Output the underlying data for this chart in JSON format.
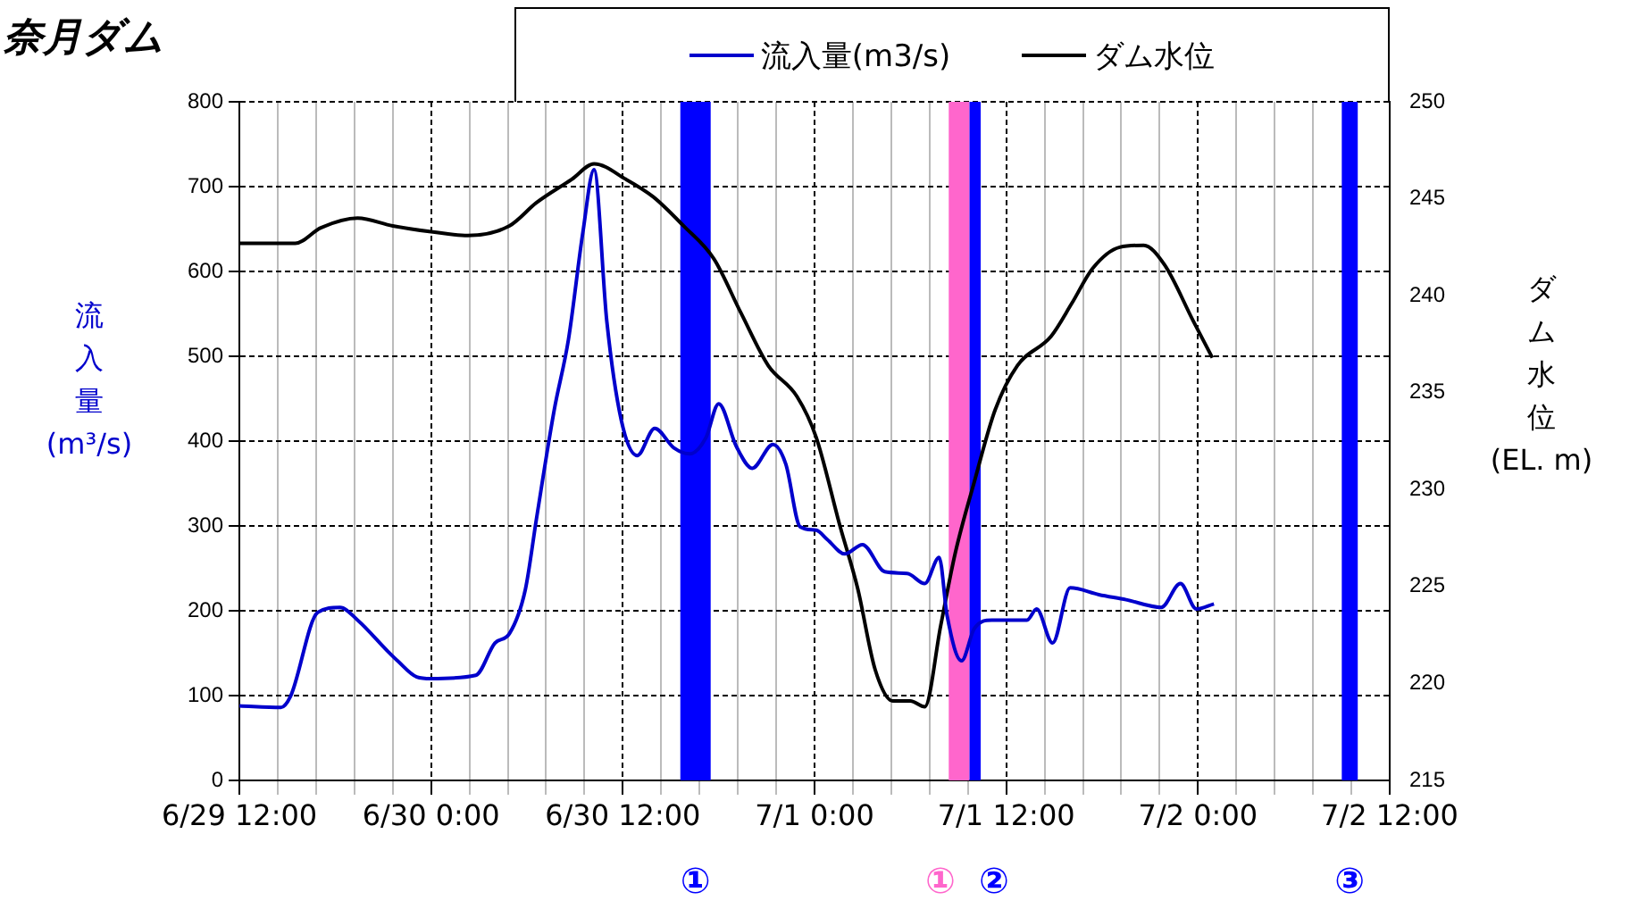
{
  "chart_data": {
    "type": "line",
    "title": "奈月ダム",
    "ylabel": "流入量(m³/s)",
    "y2label": "ダム水位(EL. m)",
    "xlim": [
      "--06-29T12:00",
      "--07-02T12:00"
    ],
    "xticks": [
      {
        "value": "--06-29T12:00",
        "label": "6/29 12:00"
      },
      {
        "value": "--06-29T14:24",
        "label": null
      },
      {
        "value": "--06-29T16:48",
        "label": null
      },
      {
        "value": "--06-29T19:12",
        "label": null
      },
      {
        "value": "--06-29T21:36",
        "label": null
      },
      {
        "value": "--06-30T00:00",
        "label": "6/30 0:00"
      },
      {
        "value": "--06-30T02:24",
        "label": null
      },
      {
        "value": "--06-30T04:48",
        "label": null
      },
      {
        "value": "--06-30T07:12",
        "label": null
      },
      {
        "value": "--06-30T09:36",
        "label": null
      },
      {
        "value": "--06-30T12:00",
        "label": "6/30 12:00"
      },
      {
        "value": "--06-30T14:24",
        "label": null
      },
      {
        "value": "--06-30T16:48",
        "label": null
      },
      {
        "value": "--06-30T19:12",
        "label": null
      },
      {
        "value": "--06-30T21:36",
        "label": null
      },
      {
        "value": "--07-01T00:00",
        "label": "7/1 0:00"
      },
      {
        "value": "--07-01T02:24",
        "label": null
      },
      {
        "value": "--07-01T04:48",
        "label": null
      },
      {
        "value": "--07-01T07:12",
        "label": null
      },
      {
        "value": "--07-01T09:36",
        "label": null
      },
      {
        "value": "--07-01T12:00",
        "label": "7/1 12:00"
      },
      {
        "value": "--07-01T14:24",
        "label": null
      },
      {
        "value": "--07-01T16:48",
        "label": null
      },
      {
        "value": "--07-01T19:12",
        "label": null
      },
      {
        "value": "--07-01T21:36",
        "label": null
      },
      {
        "value": "--07-02T00:00",
        "label": "7/2 0:00"
      },
      {
        "value": "--07-02T02:24",
        "label": null
      },
      {
        "value": "--07-02T04:48",
        "label": null
      },
      {
        "value": "--07-02T07:12",
        "label": null
      },
      {
        "value": "--07-02T09:36",
        "label": null
      },
      {
        "value": "--07-02T12:00",
        "label": "7/2 12:00"
      }
    ],
    "ylim": [
      0,
      800
    ],
    "yticks": [
      0,
      100,
      200,
      300,
      400,
      500,
      600,
      700,
      800
    ],
    "y2lim": [
      215,
      250
    ],
    "y2ticks": [
      215,
      220,
      225,
      230,
      235,
      240,
      245,
      250
    ],
    "grid": true,
    "legend": "top",
    "marker": "none",
    "line_style": "solid",
    "series": [
      {
        "name": "流入量(m3/s)",
        "color": "#0000cc",
        "x": [
          "--06-29T12:00",
          "--06-29T14:36",
          "--06-29T15:12",
          "--06-29T16:54",
          "--06-29T18:18",
          "--06-29T19:24",
          "--06-29T21:18",
          "--06-29T21:54",
          "--06-29T23:06",
          "--06-30T00:00",
          "--06-30T02:48",
          "--06-30T04:00",
          "--06-30T04:54",
          "--06-30T05:54",
          "--06-30T06:36",
          "--06-30T07:42",
          "--06-30T08:36",
          "--06-30T09:30",
          "--06-30T10:12",
          "--06-30T11:00",
          "--06-30T11:54",
          "--06-30T12:54",
          "--06-30T14:00",
          "--06-30T15:12",
          "--06-30T16:12",
          "--06-30T17:12",
          "--06-30T18:00",
          "--06-30T19:06",
          "--06-30T20:06",
          "--06-30T21:24",
          "--06-30T22:12",
          "--06-30T23:06",
          "--07-01T00:06",
          "--07-01T00:48",
          "--07-01T01:54",
          "--07-01T03:00",
          "--07-01T04:24",
          "--07-01T05:48",
          "--07-01T06:54",
          "--07-01T07:48",
          "--07-01T08:18",
          "--07-01T09:12",
          "--07-01T10:00",
          "--07-01T11:06",
          "--07-01T13:18",
          "--07-01T13:54",
          "--07-01T14:54",
          "--07-01T16:00",
          "--07-01T17:48",
          "--07-01T19:30",
          "--07-01T21:42",
          "--07-01T22:54",
          "--07-01T23:54",
          "--07-02T01:00"
        ],
        "values": [
          88,
          86,
          99,
          198,
          204,
          189,
          152,
          141,
          122,
          120,
          124,
          162,
          173,
          225,
          309,
          436,
          520,
          646,
          720,
          541,
          425,
          383,
          415,
          392,
          385,
          404,
          444,
          394,
          368,
          396,
          373,
          299,
          295,
          284,
          267,
          278,
          246,
          244,
          232,
          263,
          194,
          141,
          179,
          189,
          189,
          202,
          162,
          227,
          219,
          213,
          204,
          232,
          202,
          208
        ]
      },
      {
        "name": "ダム水位",
        "color": "#000000",
        "axis": "y2",
        "x": [
          "--06-29T12:00",
          "--06-29T15:30",
          "--06-29T17:06",
          "--06-29T19:24",
          "--06-29T21:36",
          "--06-30T00:00",
          "--06-30T02:18",
          "--06-30T04:54",
          "--06-30T06:36",
          "--06-30T08:48",
          "--06-30T10:12",
          "--06-30T12:12",
          "--06-30T13:54",
          "--06-30T15:48",
          "--06-30T17:42",
          "--06-30T19:24",
          "--06-30T21:06",
          "--06-30T22:54",
          "--07-01T00:06",
          "--07-01T01:36",
          "--07-01T02:42",
          "--07-01T03:48",
          "--07-01T04:54",
          "--07-01T06:00",
          "--07-01T06:54",
          "--07-01T07:54",
          "--07-01T08:48",
          "--07-01T10:00",
          "--07-01T11:18",
          "--07-01T12:42",
          "--07-01T14:48",
          "--07-01T16:06",
          "--07-01T17:24",
          "--07-01T19:06",
          "--07-01T20:36",
          "--07-01T21:54",
          "--07-01T23:42",
          "--07-02T00:54"
        ],
        "values": [
          242.7,
          242.7,
          243.5,
          244.0,
          243.6,
          243.3,
          243.1,
          243.6,
          244.8,
          246.0,
          246.8,
          246.0,
          245.1,
          243.6,
          241.9,
          239.1,
          236.4,
          234.8,
          232.7,
          228.1,
          224.9,
          220.7,
          219.1,
          219.1,
          218.8,
          223.0,
          226.7,
          230.4,
          234.1,
          236.4,
          237.9,
          239.6,
          241.4,
          242.5,
          242.6,
          241.6,
          238.7,
          236.8
        ]
      }
    ],
    "bands": [
      {
        "axis": "x",
        "from": "--06-30T15:36",
        "to": "--06-30T17:30",
        "label": "①",
        "color": "#0000ff"
      },
      {
        "axis": "x",
        "from": "--07-01T08:24",
        "to": "--07-01T09:42",
        "label": "①",
        "color": "#ff66cc"
      },
      {
        "axis": "x",
        "from": "--07-01T09:42",
        "to": "--07-01T10:24",
        "label": "②",
        "color": "#0000ff"
      },
      {
        "axis": "x",
        "from": "--07-02T09:00",
        "to": "--07-02T10:00",
        "label": "③",
        "color": "#0000ff"
      }
    ]
  }
}
